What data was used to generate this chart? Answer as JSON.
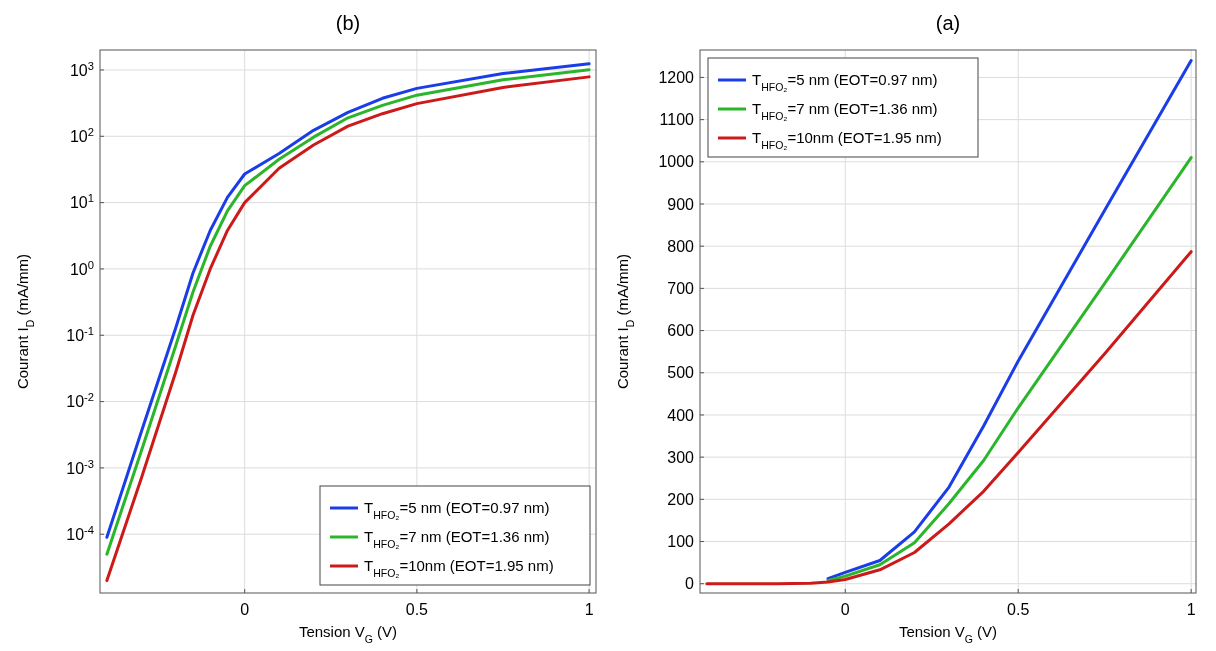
{
  "chart_data": [
    {
      "type": "line",
      "title": "(b)",
      "xlabel": "Tension V$_{G}$ (V)",
      "ylabel": "Courant I$_{D}$ (mA/mm)",
      "log": "y",
      "grid": true,
      "legend": "bottom right",
      "line_style": "solid",
      "marker": "none",
      "x": [
        -0.4,
        -0.3,
        -0.2,
        -0.15,
        -0.1,
        -0.05,
        0,
        0.1,
        0.2,
        0.3,
        0.4,
        0.5,
        0.75,
        1
      ],
      "xlim": [
        -0.42,
        1.02
      ],
      "xticks": [
        0,
        0.5,
        1
      ],
      "ylim": [
        1.3e-05,
        2000
      ],
      "yticks": [
        {
          "value": 0.0001,
          "label": "10$^{-4}$"
        },
        {
          "value": 0.001,
          "label": "10$^{-3}$"
        },
        {
          "value": 0.01,
          "label": "10$^{-2}$"
        },
        {
          "value": 0.1,
          "label": "10$^{-1}$"
        },
        {
          "value": 1,
          "label": "10$^{0}$"
        },
        {
          "value": 10,
          "label": "10$^{1}$"
        },
        {
          "value": 100,
          "label": "10$^{2}$"
        },
        {
          "value": 1000,
          "label": "10$^{3}$"
        }
      ],
      "series": [
        {
          "name": "T$_{HFO₂}$=5 nm  (EOT=0.97 nm)",
          "color": "#1a3de8",
          "values": [
            9e-05,
            0.0035,
            0.13,
            0.87,
            3.8,
            12,
            27,
            55,
            123,
            229,
            374,
            528,
            885,
            1240
          ]
        },
        {
          "name": "T$_{HFO₂}$=7 nm  (EOT=1.36 nm)",
          "color": "#2bb52b",
          "values": [
            5e-05,
            0.0018,
            0.07,
            0.45,
            2.2,
            7.5,
            18,
            45,
            97,
            190,
            292,
            417,
            712,
            1010
          ]
        },
        {
          "name": "T$_{HFO₂}$=10nm  (EOT=1.95 nm)",
          "color": "#cc1a1a",
          "values": [
            2e-05,
            0.0007,
            0.028,
            0.2,
            1,
            3.8,
            10,
            33,
            74,
            142,
            219,
            311,
            545,
            787
          ]
        }
      ]
    },
    {
      "type": "line",
      "title": "(a)",
      "xlabel": "Tension V$_{G}$ (V)",
      "ylabel": "Courant I$_{D}$ (mA/mm)",
      "grid": true,
      "legend": "top left",
      "line_style": "solid",
      "marker": "none",
      "xlim": [
        -0.42,
        1.014
      ],
      "xticks": [
        0,
        0.5,
        1
      ],
      "ylim": [
        -22,
        1265
      ],
      "yticks": [
        0,
        100,
        200,
        300,
        400,
        500,
        600,
        700,
        800,
        900,
        1000,
        1100,
        1200
      ],
      "series": [
        {
          "name": "T$_{HFO₂}$=5 nm  (EOT=0.97 nm)",
          "color": "#1a3de8",
          "x": [
            -0.05,
            0,
            0.1,
            0.2,
            0.3,
            0.4,
            0.5,
            0.75,
            1
          ],
          "values": [
            12,
            27,
            55,
            123,
            229,
            374,
            528,
            885,
            1240
          ]
        },
        {
          "name": "T$_{HFO₂}$=7 nm  (EOT=1.36 nm)",
          "color": "#2bb52b",
          "x": [
            -0.05,
            0,
            0.1,
            0.2,
            0.3,
            0.4,
            0.5,
            0.75,
            1
          ],
          "values": [
            8,
            18,
            45,
            97,
            190,
            292,
            417,
            712,
            1010
          ]
        },
        {
          "name": "T$_{HFO₂}$=10nm  (EOT=1.95 nm)",
          "color": "#cc1a1a",
          "x": [
            -0.4,
            -0.2,
            -0.1,
            -0.05,
            0,
            0.1,
            0.2,
            0.3,
            0.4,
            0.5,
            0.75,
            1
          ],
          "values": [
            0,
            0,
            1,
            4,
            10,
            33,
            74,
            142,
            219,
            311,
            545,
            787
          ]
        }
      ]
    }
  ]
}
